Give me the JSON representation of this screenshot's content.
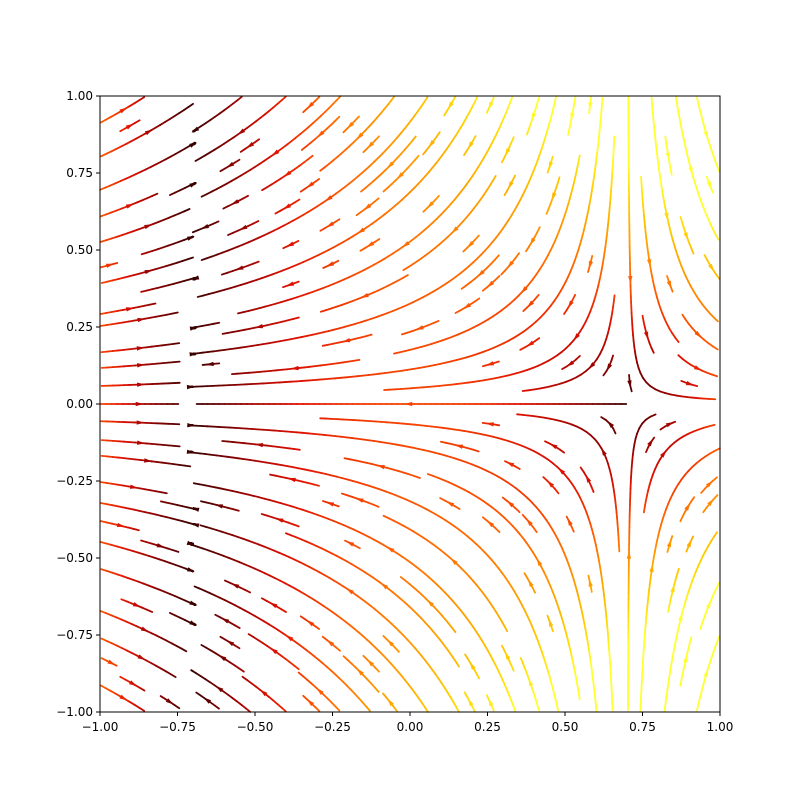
{
  "chart_data": {
    "type": "streamplot",
    "title": "",
    "xlabel": "",
    "ylabel": "",
    "xlim": [
      -1.0,
      1.0
    ],
    "ylim": [
      -1.0,
      1.0
    ],
    "x_ticks": [
      "−1.00",
      "−0.75",
      "−0.50",
      "−0.25",
      "0.00",
      "0.25",
      "0.50",
      "0.75",
      "1.00"
    ],
    "y_ticks": [
      "−1.00",
      "−0.75",
      "−0.50",
      "−0.25",
      "0.00",
      "0.25",
      "0.50",
      "0.75",
      "1.00"
    ],
    "x_tick_values": [
      -1.0,
      -0.75,
      -0.5,
      -0.25,
      0.0,
      0.25,
      0.5,
      0.75,
      1.0
    ],
    "y_tick_values": [
      -1.0,
      -0.75,
      -0.5,
      -0.25,
      0.0,
      0.25,
      0.5,
      0.75,
      1.0
    ],
    "grid": false,
    "legend": "none",
    "colormap": "hot",
    "color_stops": [
      "#3a0000",
      "#8b0000",
      "#e01000",
      "#ff5a00",
      "#ff9a00",
      "#ffd000",
      "#ffff30"
    ],
    "field": {
      "u": "x^2 - 0.49",
      "v": "-y * (x + 0.7)",
      "critical_points": [
        [
          -0.7,
          0.0
        ],
        [
          0.7,
          0.0
        ]
      ]
    }
  }
}
